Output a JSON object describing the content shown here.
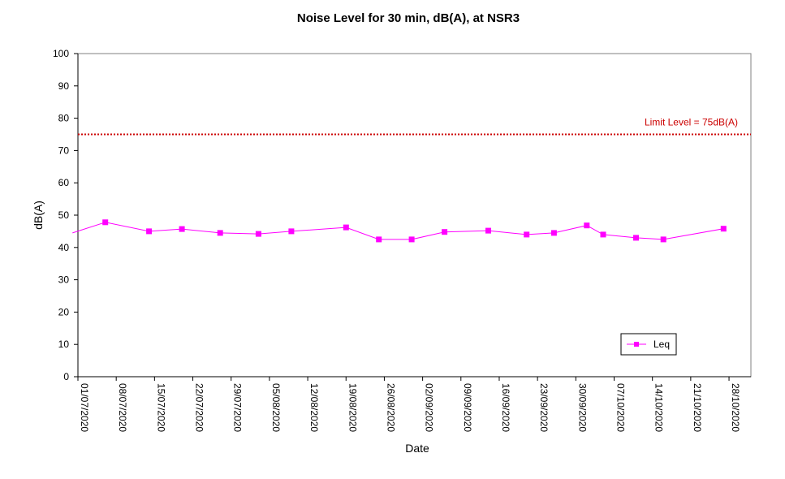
{
  "chart_data": {
    "type": "line",
    "title": "Noise Level for 30 min, dB(A), at NSR3",
    "xlabel": "Date",
    "ylabel": "dB(A)",
    "ylim": [
      0,
      100
    ],
    "yticks": [
      0,
      10,
      20,
      30,
      40,
      50,
      60,
      70,
      80,
      90,
      100
    ],
    "xlim": [
      "01/07/2020",
      "2020-11-01"
    ],
    "xtick_labels": [
      "01/07/2020",
      "08/07/2020",
      "15/07/2020",
      "22/07/2020",
      "29/07/2020",
      "05/08/2020",
      "12/08/2020",
      "19/08/2020",
      "26/08/2020",
      "02/09/2020",
      "09/09/2020",
      "16/09/2020",
      "23/09/2020",
      "30/09/2020",
      "07/10/2020",
      "14/10/2020",
      "21/10/2020",
      "28/10/2020"
    ],
    "grid": false,
    "legend_position": "bottom-right",
    "series": [
      {
        "name": "Leq",
        "color": "#ff00ff",
        "marker": "square",
        "x": [
          "2020-06-30",
          "2020-07-06",
          "2020-07-14",
          "2020-07-20",
          "2020-07-27",
          "2020-08-03",
          "2020-08-09",
          "2020-08-19",
          "2020-08-25",
          "2020-08-31",
          "2020-09-06",
          "2020-09-14",
          "2020-09-21",
          "2020-09-26",
          "2020-10-02",
          "2020-10-05",
          "2020-10-11",
          "2020-10-16",
          "2020-10-27"
        ],
        "y": [
          44.5,
          47.8,
          45.0,
          45.7,
          44.5,
          44.2,
          45.0,
          46.2,
          42.5,
          42.5,
          44.8,
          45.2,
          44.0,
          44.5,
          46.8,
          44.0,
          43.0,
          42.5,
          45.8
        ],
        "marked": [
          false,
          true,
          true,
          true,
          true,
          true,
          true,
          true,
          true,
          true,
          true,
          true,
          true,
          true,
          true,
          true,
          true,
          true,
          true
        ]
      }
    ],
    "reference_lines": [
      {
        "label": "Limit Level  = 75dB(A)",
        "y": 75,
        "color": "#cc0000",
        "style": "dotted"
      }
    ]
  }
}
